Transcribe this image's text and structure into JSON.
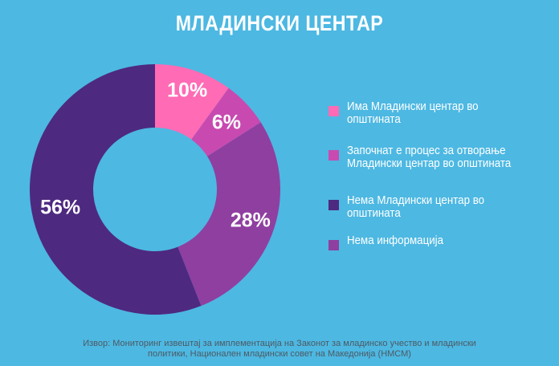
{
  "chart_data": {
    "type": "pie",
    "title": "МЛАДИНСКИ ЦЕНТАР",
    "categories": [
      "Има Младински центар во општината",
      "Започнат е процес за отворање Младински центар во општината",
      "Нема Младински центар во општината",
      "Нема информација"
    ],
    "values": [
      10,
      6,
      56,
      28
    ],
    "data_labels": [
      "10%",
      "6%",
      "56%",
      "28%"
    ],
    "colors": [
      "#ff6bb5",
      "#c84ab0",
      "#4e2980",
      "#8f3fa0"
    ],
    "legend_position": "right",
    "source": "Извор: Мониторинг извештај за имплементација на Законот за младинско учество и младински политики, Национален младински совет на Македонија (НМСМ)"
  },
  "legend": {
    "items": [
      {
        "label": "Има Младински центар во општината",
        "color": "#ff6bb5"
      },
      {
        "label": "Започнат е процес за отворање Младински центар во општината",
        "color": "#c84ab0"
      },
      {
        "label": "Нема Младински центар во општината",
        "color": "#4e2980"
      },
      {
        "label": "Нема информација",
        "color": "#8f3fa0"
      }
    ]
  },
  "source_lines": [
    "Извор: Мониторинг извештај за имплементација на Законот за младинско учество и младински",
    "политики, Национален младински совет на Македонија (НМСМ)"
  ]
}
